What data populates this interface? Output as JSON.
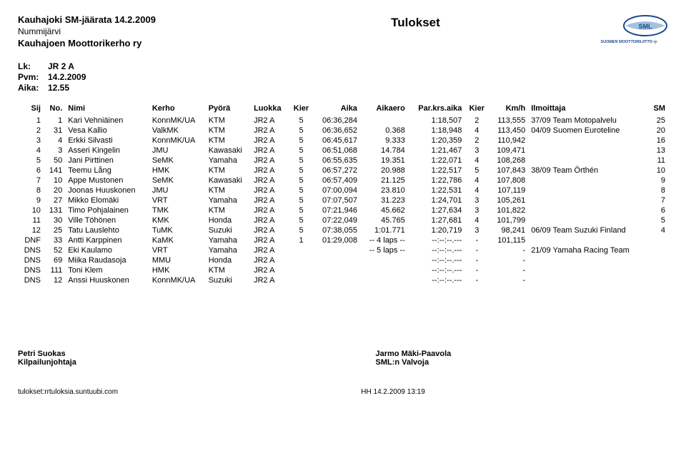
{
  "header": {
    "title": "Kauhajoki SM-jäärata 14.2.2009",
    "location": "Nummijärvi",
    "organizer": "Kauhajoen Moottorikerho ry",
    "results_label": "Tulokset"
  },
  "meta": {
    "lk_label": "Lk:",
    "lk_value": "JR 2 A",
    "pvm_label": "Pvm:",
    "pvm_value": "14.2.2009",
    "aika_label": "Aika:",
    "aika_value": "12.55"
  },
  "columns": {
    "sij": "Sij",
    "no": "No.",
    "nimi": "Nimi",
    "kerho": "Kerho",
    "pyora": "Pyörä",
    "luokka": "Luokka",
    "kier": "Kier",
    "aika": "Aika",
    "aikaero": "Aikaero",
    "parkrs": "Par.krs.aika",
    "kier2": "Kier",
    "kmh": "Km/h",
    "ilmoittaja": "Ilmoittaja",
    "sm": "SM"
  },
  "rows": [
    {
      "sij": "1",
      "no": "1",
      "nimi": "Kari Vehniäinen",
      "kerho": "KonnMK/UA",
      "pyora": "KTM",
      "luokka": "JR2 A",
      "kier": "5",
      "aika": "06:36,284",
      "aikaero": "",
      "parkrs": "1:18,507",
      "kier2": "2",
      "kmh": "113,555",
      "ilm": "37/09 Team Motopalvelu",
      "sm": "25"
    },
    {
      "sij": "2",
      "no": "31",
      "nimi": "Vesa Kallio",
      "kerho": "ValkMK",
      "pyora": "KTM",
      "luokka": "JR2 A",
      "kier": "5",
      "aika": "06:36,652",
      "aikaero": "0.368",
      "parkrs": "1:18,948",
      "kier2": "4",
      "kmh": "113,450",
      "ilm": "04/09 Suomen Euroteline",
      "sm": "20"
    },
    {
      "sij": "3",
      "no": "4",
      "nimi": "Erkki Silvasti",
      "kerho": "KonnMK/UA",
      "pyora": "KTM",
      "luokka": "JR2 A",
      "kier": "5",
      "aika": "06:45,617",
      "aikaero": "9.333",
      "parkrs": "1:20,359",
      "kier2": "2",
      "kmh": "110,942",
      "ilm": "",
      "sm": "16"
    },
    {
      "sij": "4",
      "no": "3",
      "nimi": "Asseri Kingelin",
      "kerho": "JMU",
      "pyora": "Kawasaki",
      "luokka": "JR2 A",
      "kier": "5",
      "aika": "06:51,068",
      "aikaero": "14.784",
      "parkrs": "1:21,467",
      "kier2": "3",
      "kmh": "109,471",
      "ilm": "",
      "sm": "13"
    },
    {
      "sij": "5",
      "no": "50",
      "nimi": "Jani Pirttinen",
      "kerho": "SeMK",
      "pyora": "Yamaha",
      "luokka": "JR2 A",
      "kier": "5",
      "aika": "06:55,635",
      "aikaero": "19.351",
      "parkrs": "1:22,071",
      "kier2": "4",
      "kmh": "108,268",
      "ilm": "",
      "sm": "11"
    },
    {
      "sij": "6",
      "no": "141",
      "nimi": "Teemu Lång",
      "kerho": "HMK",
      "pyora": "KTM",
      "luokka": "JR2 A",
      "kier": "5",
      "aika": "06:57,272",
      "aikaero": "20.988",
      "parkrs": "1:22,517",
      "kier2": "5",
      "kmh": "107,843",
      "ilm": "38/09 Team Örthén",
      "sm": "10"
    },
    {
      "sij": "7",
      "no": "10",
      "nimi": "Appe Mustonen",
      "kerho": "SeMK",
      "pyora": "Kawasaki",
      "luokka": "JR2 A",
      "kier": "5",
      "aika": "06:57,409",
      "aikaero": "21.125",
      "parkrs": "1:22,786",
      "kier2": "4",
      "kmh": "107,808",
      "ilm": "",
      "sm": "9"
    },
    {
      "sij": "8",
      "no": "20",
      "nimi": "Joonas Huuskonen",
      "kerho": "JMU",
      "pyora": "KTM",
      "luokka": "JR2 A",
      "kier": "5",
      "aika": "07:00,094",
      "aikaero": "23.810",
      "parkrs": "1:22,531",
      "kier2": "4",
      "kmh": "107,119",
      "ilm": "",
      "sm": "8"
    },
    {
      "sij": "9",
      "no": "27",
      "nimi": "Mikko Elomäki",
      "kerho": "VRT",
      "pyora": "Yamaha",
      "luokka": "JR2 A",
      "kier": "5",
      "aika": "07:07,507",
      "aikaero": "31.223",
      "parkrs": "1:24,701",
      "kier2": "3",
      "kmh": "105,261",
      "ilm": "",
      "sm": "7"
    },
    {
      "sij": "10",
      "no": "131",
      "nimi": "Timo Pohjalainen",
      "kerho": "TMK",
      "pyora": "KTM",
      "luokka": "JR2 A",
      "kier": "5",
      "aika": "07:21,946",
      "aikaero": "45.662",
      "parkrs": "1:27,634",
      "kier2": "3",
      "kmh": "101,822",
      "ilm": "",
      "sm": "6"
    },
    {
      "sij": "11",
      "no": "30",
      "nimi": "Ville Töhönen",
      "kerho": "KMK",
      "pyora": "Honda",
      "luokka": "JR2 A",
      "kier": "5",
      "aika": "07:22,049",
      "aikaero": "45.765",
      "parkrs": "1:27,681",
      "kier2": "4",
      "kmh": "101,799",
      "ilm": "",
      "sm": "5"
    },
    {
      "sij": "12",
      "no": "25",
      "nimi": "Tatu Lauslehto",
      "kerho": "TuMK",
      "pyora": "Suzuki",
      "luokka": "JR2 A",
      "kier": "5",
      "aika": "07:38,055",
      "aikaero": "1:01.771",
      "parkrs": "1:20,719",
      "kier2": "3",
      "kmh": "98,241",
      "ilm": "06/09 Team Suzuki Finland",
      "sm": "4"
    },
    {
      "sij": "DNF",
      "no": "33",
      "nimi": "Antti Karppinen",
      "kerho": "KaMK",
      "pyora": "Yamaha",
      "luokka": "JR2 A",
      "kier": "1",
      "aika": "01:29,008",
      "aikaero": "-- 4 laps --",
      "parkrs": "--:--:--.---",
      "kier2": "-",
      "kmh": "101,115",
      "ilm": "",
      "sm": ""
    },
    {
      "sij": "DNS",
      "no": "52",
      "nimi": "Eki Kaulamo",
      "kerho": "VRT",
      "pyora": "Yamaha",
      "luokka": "JR2 A",
      "kier": "",
      "aika": "",
      "aikaero": "-- 5 laps --",
      "parkrs": "--:--:--.---",
      "kier2": "-",
      "kmh": "-",
      "ilm": "21/09 Yamaha Racing Team",
      "sm": ""
    },
    {
      "sij": "DNS",
      "no": "69",
      "nimi": "Miika Raudasoja",
      "kerho": "MMU",
      "pyora": "Honda",
      "luokka": "JR2 A",
      "kier": "",
      "aika": "",
      "aikaero": "",
      "parkrs": "--:--:--.---",
      "kier2": "-",
      "kmh": "-",
      "ilm": "",
      "sm": ""
    },
    {
      "sij": "DNS",
      "no": "111",
      "nimi": "Toni Klem",
      "kerho": "HMK",
      "pyora": "KTM",
      "luokka": "JR2 A",
      "kier": "",
      "aika": "",
      "aikaero": "",
      "parkrs": "--:--:--.---",
      "kier2": "-",
      "kmh": "-",
      "ilm": "",
      "sm": ""
    },
    {
      "sij": "DNS",
      "no": "12",
      "nimi": "Anssi Huuskonen",
      "kerho": "KonnMK/UA",
      "pyora": "Suzuki",
      "luokka": "JR2 A",
      "kier": "",
      "aika": "",
      "aikaero": "",
      "parkrs": "--:--:--.---",
      "kier2": "-",
      "kmh": "-",
      "ilm": "",
      "sm": ""
    }
  ],
  "footer": {
    "official_name": "Petri Suokas",
    "official_role": "Kilpailunjohtaja",
    "supervisor_name": "Jarmo Mäki-Paavola",
    "supervisor_role": "SML:n Valvoja"
  },
  "bottom": {
    "left": "tulokset:rrtuloksia.suntuubi.com",
    "center": "HH 14.2.2009 13:19"
  },
  "logo": {
    "text_top": "SML",
    "text_bottom": "SUOMEN MOOTTORILIITTO ry",
    "color": "#1a4a8a"
  }
}
